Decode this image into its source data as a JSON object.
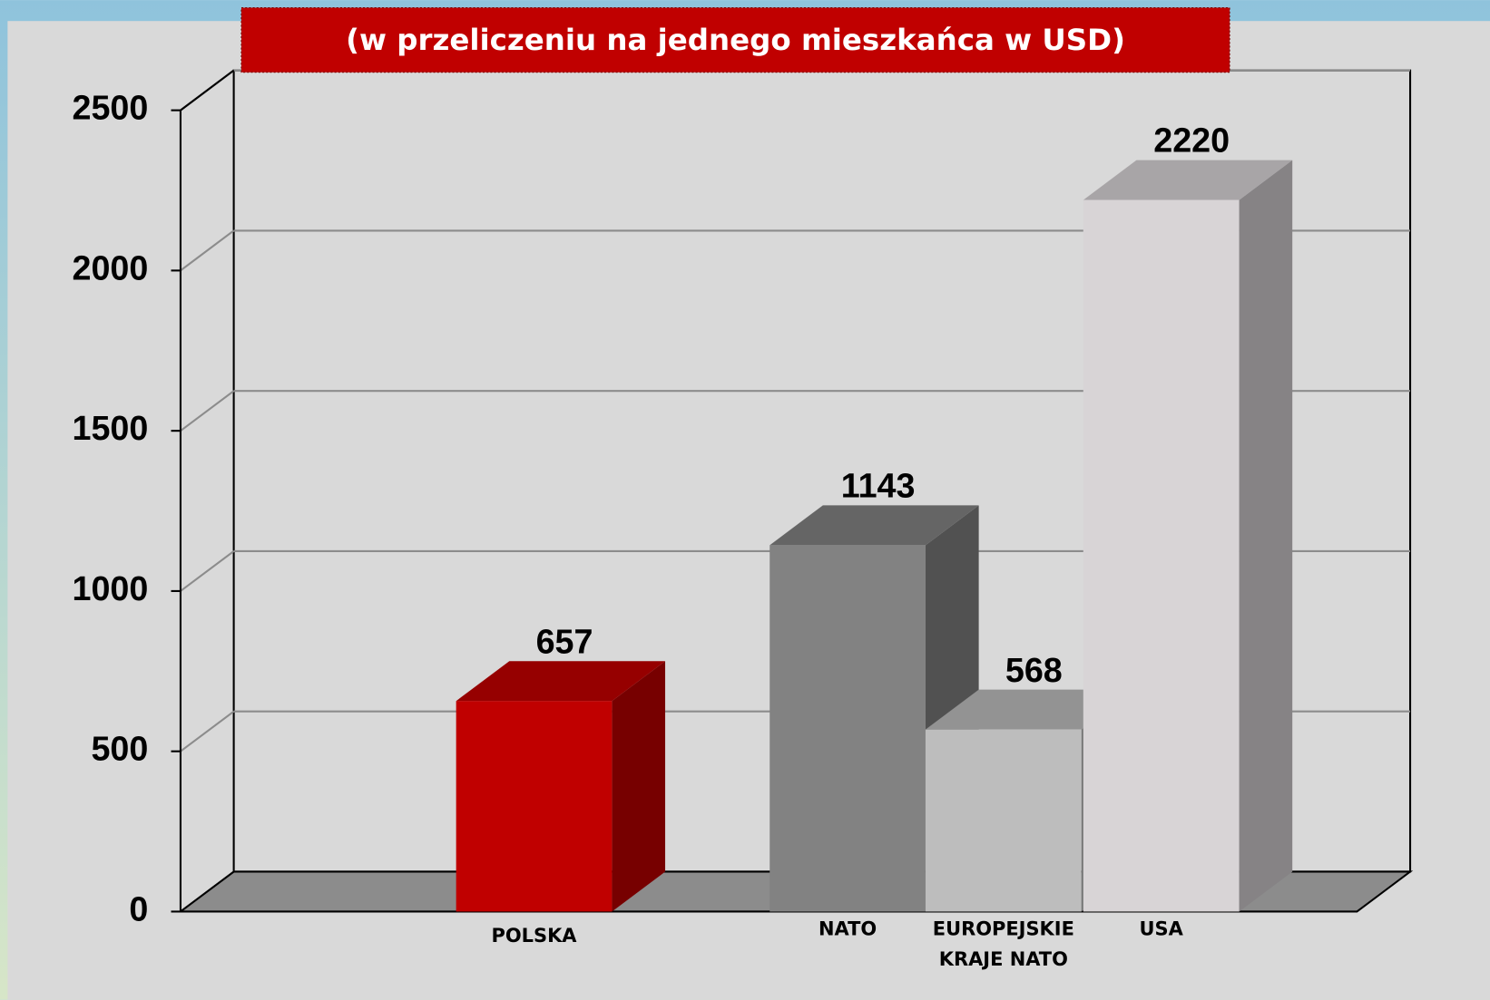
{
  "chart_data": {
    "type": "bar3d",
    "title": "(w przeliczeniu na jednego mieszkańca w USD)",
    "categories": [
      "POLSKA",
      "NATO",
      "EUROPEJSKIE KRAJE NATO",
      "USA"
    ],
    "values": [
      657,
      1143,
      568,
      2220
    ],
    "colors": [
      "#c00000",
      "#828282",
      "#bdbdbd",
      "#d8d4d6"
    ],
    "ylim": [
      0,
      2500
    ],
    "yticks": [
      0,
      500,
      1000,
      1500,
      2000,
      2500
    ],
    "grid": true
  }
}
